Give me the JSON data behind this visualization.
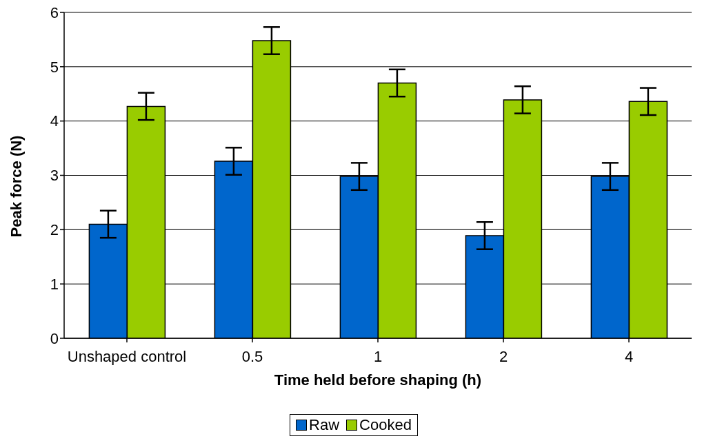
{
  "chart_data": {
    "type": "bar",
    "xlabel": "Time held before shaping (h)",
    "ylabel": "Peak force (N)",
    "categories": [
      "Unshaped control",
      "0.5",
      "1",
      "2",
      "4"
    ],
    "series": [
      {
        "name": "Raw",
        "color": "#0066cc",
        "values": [
          2.1,
          3.26,
          2.98,
          1.89,
          2.98
        ],
        "errors": [
          0.25,
          0.25,
          0.25,
          0.25,
          0.25
        ]
      },
      {
        "name": "Cooked",
        "color": "#99cc00",
        "values": [
          4.27,
          5.48,
          4.7,
          4.39,
          4.36
        ],
        "errors": [
          0.25,
          0.25,
          0.25,
          0.25,
          0.25
        ]
      }
    ],
    "ylim": [
      0,
      6
    ],
    "yticks": [
      0,
      1,
      2,
      3,
      4,
      5,
      6
    ],
    "grid": "y",
    "legend": "bottom"
  }
}
